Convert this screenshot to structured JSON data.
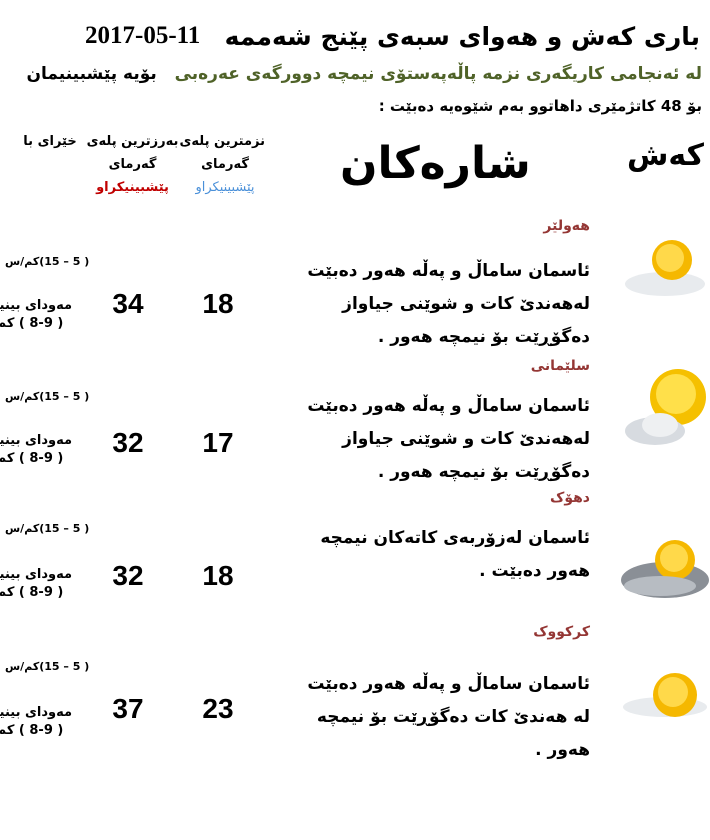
{
  "header": {
    "title": "باری کەش و هەوای سبەی پێنج شەممە",
    "date": "2017-05-11",
    "subtitle_green": "لە ئەنجامی کاریگەری نزمە پاڵەپەستۆی نیمچە دوورگەی عەرەبی",
    "subtitle_black": "بۆیە پێشبینیمان",
    "line3": "بۆ  48 کاتژمێری داهاتوو بەم شێوەیە دەبێت :"
  },
  "columns": {
    "weather": "کەش",
    "cities": "شارەکان",
    "min_line1": "نزمترین پلەی",
    "min_line2": "گەرمای",
    "min_line3": "پێشبینیکراو",
    "max_line1": "بەرزترین پلەی",
    "max_line2": "گەرمای",
    "max_line3": "پێشبینیکراو",
    "wind": "خێرای با"
  },
  "rows": [
    {
      "city": "هەولێر",
      "desc": "ئاسمان ساماڵ و پەڵە هەور دەبێت لەهەندێ کات و شوێنی جیاواز دەگۆڕێت بۆ نیمچە هەور .",
      "min": "18",
      "max": "34",
      "wind": "( 5 – 15)کم/س",
      "vis1": "مەودای بینین",
      "vis2": "( 8-9 ) کم",
      "icon": "sun-cloud-icon"
    },
    {
      "city": "سلێمانی",
      "desc": "ئاسمان ساماڵ و پەڵە هەور دەبێت لەهەندێ کات و شوێنی جیاواز دەگۆڕێت بۆ نیمچە هەور .",
      "min": "17",
      "max": "32",
      "wind": "( 5 – 15)کم/س",
      "vis1": "مەودای بینین",
      "vis2": "( 8-9 ) کم",
      "icon": "sun-behind-cloud-icon"
    },
    {
      "city": "دهۆک",
      "desc": "ئاسمان  لەزۆربەی کاتەکان نیمچە هەور دەبێت .",
      "min": "18",
      "max": "32",
      "wind": "( 5 – 15)کم/س",
      "vis1": "مەودای بینین",
      "vis2": "( 8-9 ) کم",
      "icon": "partly-cloudy-icon"
    },
    {
      "city": "کرکووک",
      "desc": "ئاسمان ساماڵ و پەڵە هەور دەبێت لە هەندێ کات دەگۆڕێت بۆ نیمچە هەور .",
      "min": "23",
      "max": "37",
      "wind": "( 5 – 15)کم/س",
      "vis1": "مەودای بینین",
      "vis2": "( 8-9 ) کم",
      "icon": "sun-cloud-icon"
    }
  ]
}
